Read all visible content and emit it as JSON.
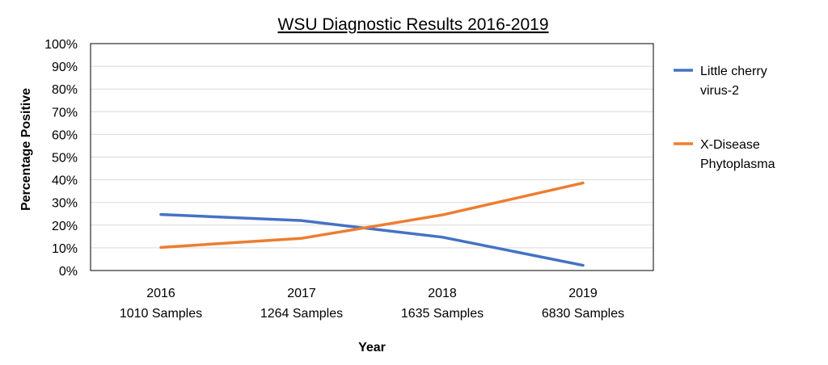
{
  "chart_data": {
    "type": "line",
    "title": "WSU Diagnostic Results 2016-2019",
    "xlabel": "Year",
    "ylabel": "Percentage Positive",
    "categories": [
      {
        "year": "2016",
        "samples": "1010 Samples"
      },
      {
        "year": "2017",
        "samples": "1264 Samples"
      },
      {
        "year": "2018",
        "samples": "1635 Samples"
      },
      {
        "year": "2019",
        "samples": "6830 Samples"
      }
    ],
    "ylim": [
      0,
      100
    ],
    "yticks": [
      "0%",
      "10%",
      "20%",
      "30%",
      "40%",
      "50%",
      "60%",
      "70%",
      "80%",
      "90%",
      "100%"
    ],
    "grid": true,
    "legend_position": "right",
    "series": [
      {
        "name_lines": [
          "Little cherry",
          "virus-2"
        ],
        "color": "#4472c4",
        "values": [
          24.7,
          22,
          14.7,
          2.3
        ]
      },
      {
        "name_lines": [
          "X-Disease",
          "Phytoplasma"
        ],
        "color": "#ed7d31",
        "values": [
          10.2,
          14.2,
          24.5,
          38.6
        ]
      }
    ]
  }
}
